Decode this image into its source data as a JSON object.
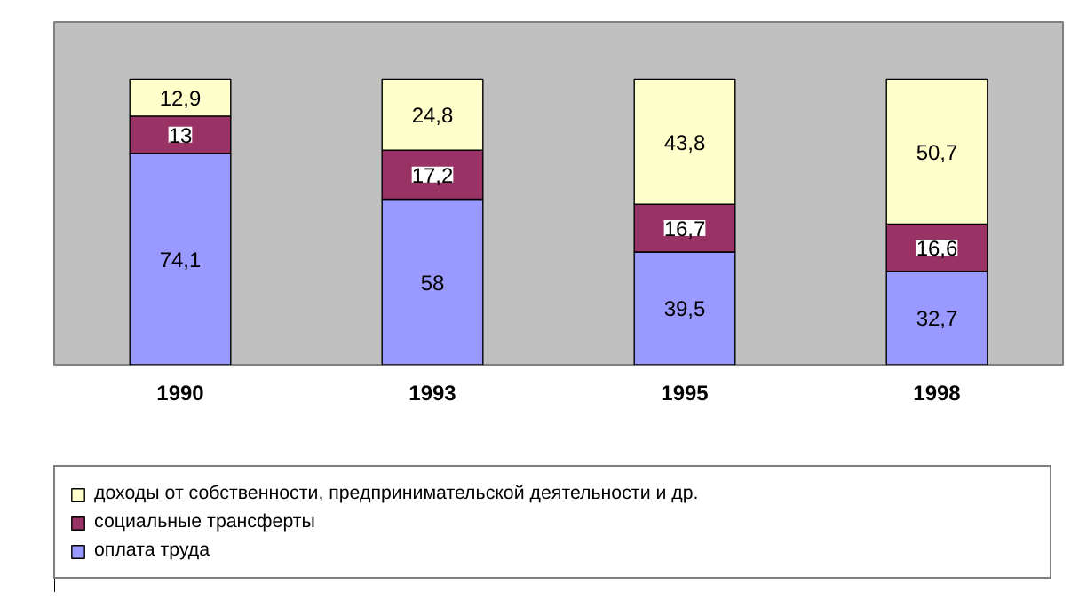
{
  "chart_data": {
    "type": "bar",
    "stacked": true,
    "legend": "bottom",
    "grid": false,
    "categories": [
      "1990",
      "1993",
      "1995",
      "1998"
    ],
    "series": [
      {
        "name": "оплата труда",
        "color": "#9999ff",
        "values": [
          74.1,
          58,
          39.5,
          32.7
        ],
        "value_labels": [
          "74,1",
          "58",
          "39,5",
          "32,7"
        ]
      },
      {
        "name": "социальные трансферты",
        "color": "#993366",
        "values": [
          13,
          17.2,
          16.7,
          16.6
        ],
        "value_labels": [
          "13",
          "17,2",
          "16,7",
          "16,6"
        ]
      },
      {
        "name": "доходы от собственности, предпринимательской деятельности и др.",
        "color": "#ffffcc",
        "values": [
          12.9,
          24.8,
          43.8,
          50.7
        ],
        "value_labels": [
          "12,9",
          "24,8",
          "43,8",
          "50,7"
        ]
      }
    ]
  }
}
